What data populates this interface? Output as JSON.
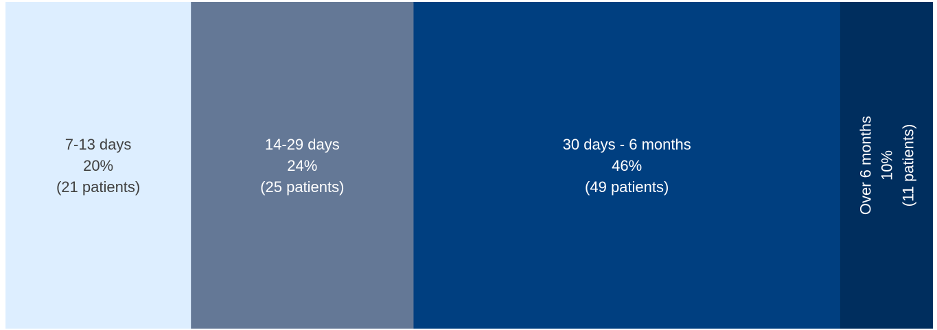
{
  "chart_data": {
    "type": "bar",
    "orientation": "stacked-horizontal-100",
    "categories": [
      "7-13 days",
      "14-29 days",
      "30 days - 6 months",
      "Over 6 months"
    ],
    "values": [
      20,
      24,
      46,
      10
    ],
    "unit": "%",
    "patients": [
      21,
      25,
      49,
      11
    ],
    "labels": [
      {
        "line1": "7-13 days",
        "line2": "20%",
        "line3": "(21 patients)"
      },
      {
        "line1": "14-29 days",
        "line2": "24%",
        "line3": "(25 patients)"
      },
      {
        "line1": "30 days - 6 months",
        "line2": "46%",
        "line3": "(49 patients)"
      },
      {
        "line1": "Over 6 months",
        "line2": "10%",
        "line3": "(11 patients)"
      }
    ],
    "colors": [
      "#ddeeff",
      "#647896",
      "#003f80",
      "#002e5e"
    ],
    "text_colors": [
      "#404040",
      "#ffffff",
      "#ffffff",
      "#ffffff"
    ],
    "label_rotated": [
      false,
      false,
      false,
      true
    ],
    "title": "",
    "xlabel": "",
    "ylabel": "",
    "grid": false,
    "legend": "none"
  }
}
